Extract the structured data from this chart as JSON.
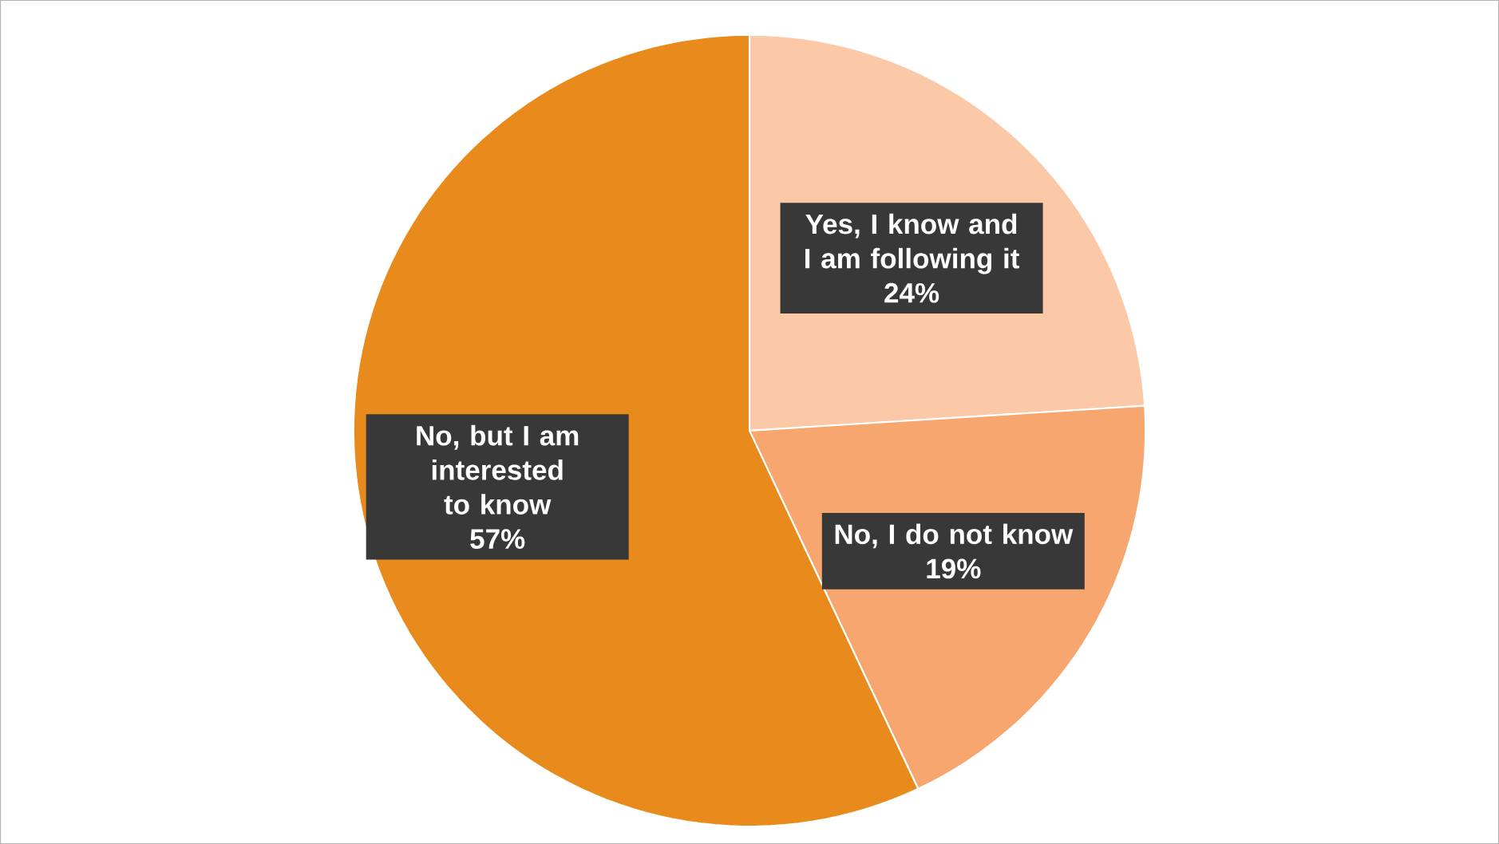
{
  "chart_data": {
    "type": "pie",
    "categories": [
      "Yes, I know and I am following it",
      "No, I do not know",
      "No, but I am interested to know"
    ],
    "values": [
      24,
      19,
      57
    ],
    "value_labels": [
      "24%",
      "19%",
      "57%"
    ],
    "colors": [
      "#fbc9a8",
      "#f6a66e",
      "#e88a1c"
    ]
  }
}
